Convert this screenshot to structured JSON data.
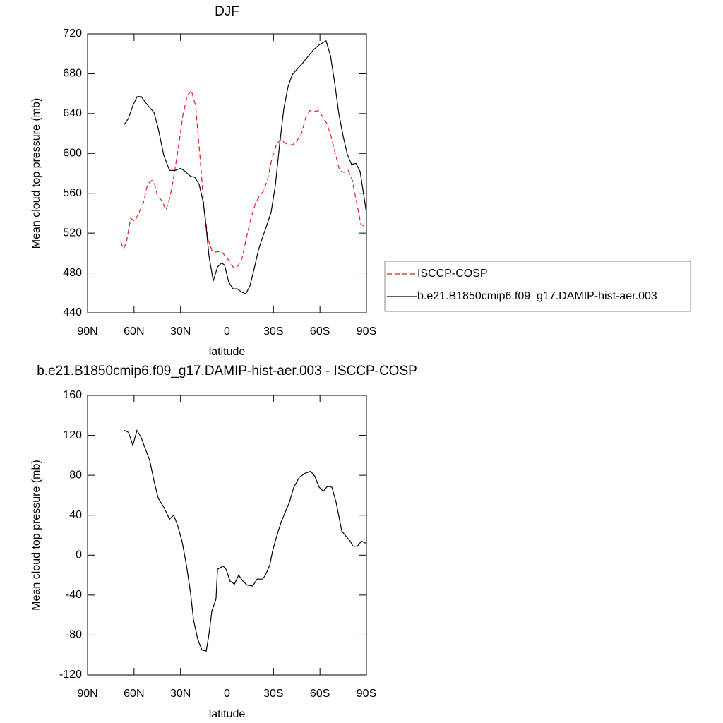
{
  "chart_data": [
    {
      "type": "line",
      "title": "DJF",
      "xlabel": "latitude",
      "ylabel": "Mean cloud top pressure (mb)",
      "xlim": [
        90,
        -90
      ],
      "xticks": [
        {
          "value": 90,
          "label": "90N"
        },
        {
          "value": 60,
          "label": "60N"
        },
        {
          "value": 30,
          "label": "30N"
        },
        0,
        {
          "value": -30,
          "label": "30S"
        },
        {
          "value": -60,
          "label": "60S"
        },
        {
          "value": -90,
          "label": "90S"
        }
      ],
      "ylim": [
        440,
        720
      ],
      "yticks": [
        440,
        480,
        520,
        560,
        600,
        640,
        680,
        720
      ],
      "legend": "outside-right",
      "series": [
        {
          "name": "ISCCP-COSP",
          "color": "#e8191e",
          "line_style": "dashed",
          "x": [
            68.6,
            66.8,
            64.9,
            62.2,
            59.5,
            56.7,
            54.0,
            51.3,
            48.5,
            46.7,
            44.9,
            42.2,
            39.4,
            36.7,
            34.0,
            31.2,
            28.5,
            25.7,
            23.0,
            20.3,
            17.5,
            14.8,
            12.1,
            9.3,
            6.6,
            3.9,
            1.1,
            -1.6,
            -4.3,
            -7.1,
            -9.8,
            -12.5,
            -15.3,
            -18.0,
            -20.7,
            -23.5,
            -26.2,
            -28.9,
            -31.7,
            -34.4,
            -37.1,
            -39.9,
            -42.6,
            -45.3,
            -48.1,
            -50.8,
            -53.5,
            -56.3,
            -59.0,
            -61.7,
            -64.5,
            -67.2,
            -69.9,
            -72.7,
            -75.4,
            -78.2,
            -80.9,
            -83.6,
            -86.4,
            -89.5
          ],
          "values": [
            511,
            504,
            511,
            535,
            532,
            541,
            550,
            569,
            573,
            569,
            557,
            553,
            543,
            557,
            580,
            608,
            638,
            658,
            663,
            648,
            598,
            545,
            513,
            501,
            501,
            502,
            497,
            492,
            485,
            487,
            495,
            515,
            534,
            548,
            557,
            562,
            574,
            594,
            608,
            614,
            611,
            608,
            609,
            613,
            620,
            636,
            643,
            642,
            643,
            637,
            630,
            617,
            600,
            583,
            581,
            583,
            573,
            551,
            529,
            526
          ]
        },
        {
          "name": "b.e21.B1850cmip6.f09_g17.DAMIP-hist-aer.003",
          "color": "#000000",
          "line_style": "solid",
          "x": [
            66.3,
            63.6,
            60.8,
            58.0,
            55.3,
            52.6,
            49.9,
            47.1,
            44.4,
            40.8,
            37.1,
            33.5,
            29.8,
            27.1,
            23.5,
            20.8,
            18.0,
            15.3,
            13.4,
            11.6,
            8.9,
            6.1,
            3.4,
            1.6,
            -1.1,
            -3.8,
            -6.6,
            -9.3,
            -12.1,
            -14.8,
            -17.5,
            -20.3,
            -23.0,
            -25.7,
            -28.5,
            -31.2,
            -33.9,
            -36.7,
            -39.4,
            -42.1,
            -44.9,
            -48.5,
            -52.2,
            -55.8,
            -59.5,
            -64.0,
            -66.8,
            -69.5,
            -72.2,
            -75.0,
            -77.7,
            -80.4,
            -83.2,
            -85.9,
            -88.6,
            -90
          ],
          "values": [
            629,
            635,
            648,
            657,
            657,
            651,
            646,
            641,
            625,
            598,
            583,
            583,
            585,
            582,
            577,
            576,
            569,
            551,
            525,
            497,
            472,
            486,
            490,
            488,
            471,
            464,
            464,
            461,
            459,
            467,
            484,
            503,
            516,
            528,
            541,
            568,
            608,
            645,
            667,
            679,
            684,
            690,
            697,
            704,
            709,
            713,
            698,
            671,
            640,
            617,
            599,
            589,
            590,
            582,
            555,
            540
          ]
        }
      ]
    },
    {
      "type": "line",
      "title": "b.e21.B1850cmip6.f09_g17.DAMIP-hist-aer.003 - ISCCP-COSP",
      "xlabel": "latitude",
      "ylabel": "Mean cloud top pressure (mb)",
      "xlim": [
        90,
        -90
      ],
      "xticks": [
        {
          "value": 90,
          "label": "90N"
        },
        {
          "value": 60,
          "label": "60N"
        },
        {
          "value": 30,
          "label": "30N"
        },
        0,
        {
          "value": -30,
          "label": "30S"
        },
        {
          "value": -60,
          "label": "60S"
        },
        {
          "value": -90,
          "label": "90S"
        }
      ],
      "ylim": [
        -120,
        160
      ],
      "yticks": [
        -120,
        -80,
        -40,
        0,
        40,
        80,
        120,
        160
      ],
      "series": [
        {
          "color": "#000000",
          "line_style": "solid",
          "x": [
            66.3,
            63.6,
            60.8,
            58.1,
            55.4,
            52.6,
            49.9,
            47.2,
            44.4,
            40.8,
            37.1,
            34.4,
            31.7,
            28.9,
            26.2,
            23.5,
            21.6,
            18.9,
            16.2,
            13.4,
            11.6,
            9.8,
            7.1,
            6.1,
            2.5,
            0.7,
            -2.0,
            -4.8,
            -7.5,
            -10.3,
            -13.0,
            -16.6,
            -19.4,
            -23.0,
            -24.8,
            -27.6,
            -29.4,
            -32.1,
            -34.9,
            -37.6,
            -40.3,
            -43.1,
            -46.7,
            -50.4,
            -54.0,
            -56.7,
            -59.5,
            -62.2,
            -64.9,
            -67.7,
            -70.4,
            -74.1,
            -76.8,
            -79.5,
            -81.3,
            -84.1,
            -86.8,
            -89.5
          ],
          "values": [
            125,
            123,
            110,
            125,
            118,
            106,
            95,
            75,
            57,
            48,
            36,
            40,
            29,
            13,
            -10,
            -38,
            -65,
            -84,
            -95,
            -96,
            -79,
            -56,
            -44,
            -14,
            -11,
            -14,
            -26,
            -29,
            -20,
            -26,
            -30,
            -31,
            -24,
            -24,
            -20,
            -10,
            4,
            19,
            33,
            43,
            53,
            68,
            78,
            82,
            84,
            79,
            68,
            64,
            69,
            68,
            53,
            24,
            19,
            14,
            9,
            9,
            14,
            12
          ]
        }
      ]
    }
  ]
}
